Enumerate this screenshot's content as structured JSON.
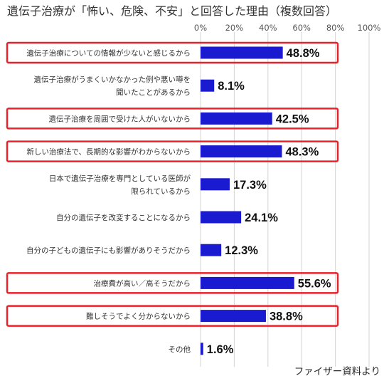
{
  "chart_data": {
    "type": "bar",
    "orientation": "horizontal",
    "title": "遺伝子治療が「怖い、危険、不安」と回答した理由（複数回答）",
    "xlim": [
      0,
      100
    ],
    "ticks": [
      "0%",
      "20%",
      "40%",
      "60%",
      "80%",
      "100%"
    ],
    "categories": [
      [
        "遺伝子治療についての情報が少ないと感じるから"
      ],
      [
        "遺伝子治療がうまくいかなかった例や悪い噂を",
        "聞いたことがあるから"
      ],
      [
        "遺伝子治療を周囲で受けた人がいないから"
      ],
      [
        "新しい治療法で、長期的な影響がわからないから"
      ],
      [
        "日本で遺伝子治療を専門としている医師が",
        "限られているから"
      ],
      [
        "自分の遺伝子を改変することになるから"
      ],
      [
        "自分の子どもの遺伝子にも影響がありそうだから"
      ],
      [
        "治療費が高い／高そうだから"
      ],
      [
        "難しそうでよく分からないから"
      ],
      [
        "その他"
      ]
    ],
    "values": [
      48.8,
      8.1,
      42.5,
      48.3,
      17.3,
      24.1,
      12.3,
      55.6,
      38.8,
      1.6
    ],
    "value_labels": [
      "48.8%",
      "8.1%",
      "42.5%",
      "48.3%",
      "17.3%",
      "24.1%",
      "12.3%",
      "55.6%",
      "38.8%",
      "1.6%"
    ],
    "highlighted": [
      true,
      false,
      true,
      true,
      false,
      false,
      false,
      true,
      true,
      false
    ],
    "grid": true,
    "colors": {
      "bar": "#1a1ad1",
      "highlight": "#e8222a",
      "grid": "#d4d4d4"
    }
  },
  "source_note": "ファイザー資料より"
}
